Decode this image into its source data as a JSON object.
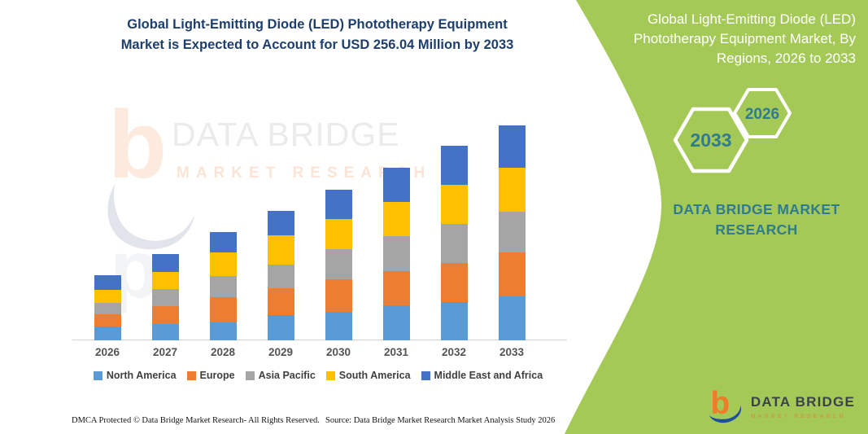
{
  "header": {
    "lines": [
      "Global Light-Emitting Diode (LED) Phototherapy Equipment",
      "Market is Expected to Account for USD 256.04 Million by 2033"
    ]
  },
  "chart_data": {
    "type": "bar",
    "stacked": true,
    "title": "Global Light-Emitting Diode (LED) Phototherapy Equipment Market is Expected to Account for USD 256.04 Million by 2033",
    "unit": "USD Million",
    "categories": [
      "2026",
      "2027",
      "2028",
      "2029",
      "2030",
      "2031",
      "2032",
      "2033"
    ],
    "series": [
      {
        "name": "North America",
        "color": "#5B9BD5",
        "values": [
          16.6,
          19.5,
          21.7,
          30.5,
          34.1,
          41.6,
          45.5,
          52.3
        ]
      },
      {
        "name": "Europe",
        "color": "#ED7D31",
        "values": [
          14.9,
          21.7,
          30.2,
          31.5,
          39.0,
          40.6,
          47.1,
          52.0
        ]
      },
      {
        "name": "Asia Pacific",
        "color": "#A5A5A5",
        "values": [
          12.7,
          20.2,
          25.0,
          28.6,
          35.8,
          42.2,
          46.5,
          49.4
        ]
      },
      {
        "name": "South America",
        "color": "#FFC000",
        "values": [
          16.3,
          20.5,
          27.6,
          34.8,
          35.8,
          40.6,
          46.1,
          52.0
        ]
      },
      {
        "name": "Middle East and Africa",
        "color": "#4472C4",
        "values": [
          16.9,
          21.1,
          25.0,
          28.6,
          34.8,
          40.6,
          47.1,
          50.34
        ]
      }
    ],
    "totals": [
      77.4,
      103.0,
      129.5,
      154.0,
      179.5,
      205.6,
      232.3,
      256.04
    ],
    "ylim": [
      0,
      260
    ],
    "grid": false,
    "legend_position": "bottom",
    "xlabel": "",
    "ylabel": ""
  },
  "panel": {
    "color": "#a5c957",
    "teal": "#2f7b8f",
    "title_lines": [
      "Global Light-Emitting Diode (LED)",
      "Phototherapy Equipment Market, By",
      "Regions, 2026 to 2033"
    ],
    "hex_large_label": "2033",
    "hex_small_label": "2026",
    "brand_lines": [
      "DATA BRIDGE MARKET",
      "RESEARCH"
    ]
  },
  "watermark": {
    "glyph": "b",
    "line1": "DATA BRIDGE",
    "line2": "MARKET RESEARCH"
  },
  "logo": {
    "glyph": "b",
    "name": "DATA BRIDGE",
    "sub": "MARKET RESEARCH"
  },
  "footer": {
    "left": "DMCA Protected © Data Bridge Market Research-  All Rights Reserved.",
    "right": "Source: Data Bridge Market Research  Market Analysis Study 2026"
  }
}
